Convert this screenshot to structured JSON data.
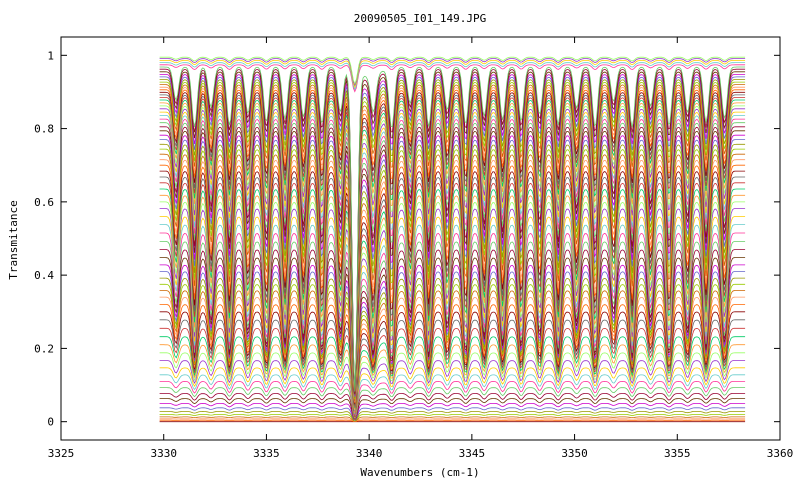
{
  "chart_data": {
    "type": "line",
    "title": "20090505_I01_149.JPG",
    "xlabel": "Wavenumbers (cm-1)",
    "ylabel": "Transmitance",
    "xlim": [
      3325,
      3360
    ],
    "ylim": [
      -0.05,
      1.05
    ],
    "xticks": [
      3325,
      3330,
      3335,
      3340,
      3345,
      3350,
      3355,
      3360
    ],
    "xtick_labels": [
      "3325",
      "3330",
      "3335",
      "3340",
      "3345",
      "3350",
      "3355",
      "3360"
    ],
    "yticks": [
      0,
      0.2,
      0.4,
      0.6,
      0.8,
      1
    ],
    "ytick_labels": [
      "0",
      "0.2",
      "0.4",
      "0.6",
      "0.8",
      "1"
    ],
    "grid": false,
    "legend": "none",
    "x_range_data": [
      3329.8,
      3358.3
    ],
    "absorption_lines_x": [
      3330.6,
      3331.5,
      3332.3,
      3333.2,
      3334.1,
      3335.0,
      3335.9,
      3336.8,
      3337.7,
      3338.6,
      3339.3,
      3340.2,
      3341.1,
      3342.0,
      3342.9,
      3343.8,
      3344.7,
      3345.6,
      3346.5,
      3347.4,
      3348.3,
      3349.2,
      3350.1,
      3351.0,
      3351.9,
      3352.8,
      3353.7,
      3354.6,
      3355.5,
      3356.4,
      3357.3
    ],
    "series_baselines": [
      0.0,
      0.004,
      0.008,
      0.013,
      0.02,
      0.028,
      0.038,
      0.05,
      0.063,
      0.077,
      0.093,
      0.11,
      0.128,
      0.147,
      0.167,
      0.188,
      0.21,
      0.232,
      0.255,
      0.278,
      0.3,
      0.32,
      0.34,
      0.358,
      0.375,
      0.392,
      0.41,
      0.428,
      0.448,
      0.47,
      0.492,
      0.515,
      0.538,
      0.56,
      0.582,
      0.6,
      0.618,
      0.635,
      0.652,
      0.668,
      0.684,
      0.7,
      0.715,
      0.73,
      0.744,
      0.757,
      0.77,
      0.782,
      0.794,
      0.805,
      0.816,
      0.826,
      0.836,
      0.845,
      0.854,
      0.862,
      0.87,
      0.878,
      0.885,
      0.892,
      0.899,
      0.906,
      0.913,
      0.92,
      0.927,
      0.934,
      0.941,
      0.948,
      0.955,
      0.962,
      0.968,
      0.974,
      0.98,
      0.986,
      0.991,
      0.995
    ],
    "series_colors": [
      "#8b0000",
      "#ff6600",
      "#ff9966",
      "#cc6600",
      "#99cc00",
      "#999900",
      "#6666cc",
      "#cc00cc",
      "#663300",
      "#990033",
      "#66cc66",
      "#ff3399",
      "#66cccc",
      "#ffcc00",
      "#9933cc",
      "#99ff66",
      "#ff9933",
      "#00cc66",
      "#cc3333",
      "#666666"
    ]
  }
}
